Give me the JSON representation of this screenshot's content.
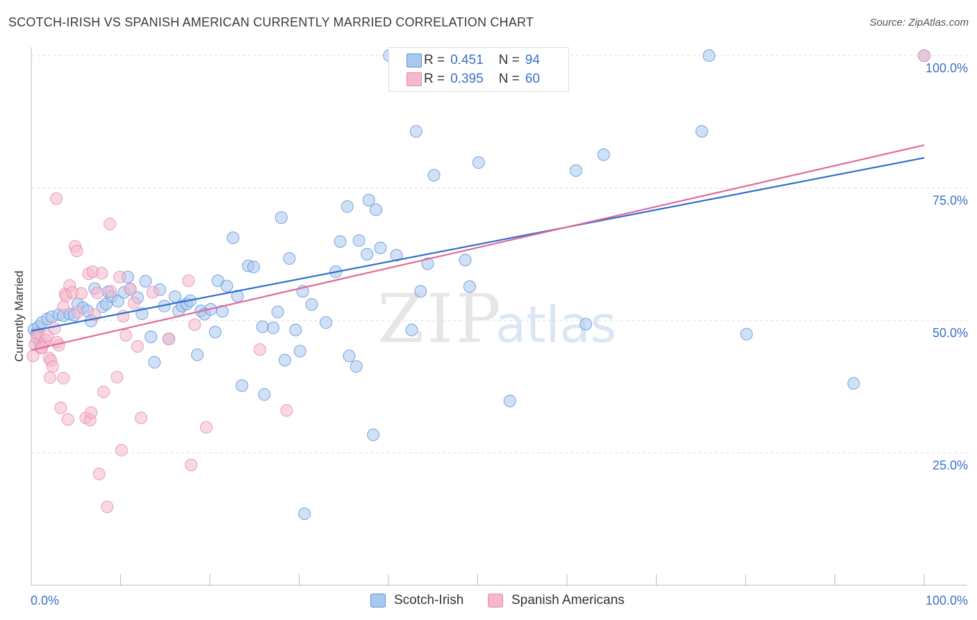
{
  "title": "SCOTCH-IRISH VS SPANISH AMERICAN CURRENTLY MARRIED CORRELATION CHART",
  "source": "Source: ZipAtlas.com",
  "watermark": {
    "zip": "ZIP",
    "atlas": "atlas"
  },
  "legend": {
    "r_label": "R =",
    "n_label": "N =",
    "series": [
      {
        "name": "Scotch-Irish",
        "r": "0.451",
        "n": "94"
      },
      {
        "name": "Spanish Americans",
        "r": "0.395",
        "n": "60"
      }
    ]
  },
  "colors": {
    "blue_fill": "#a9c8f0",
    "blue_stroke": "#5b8fd6",
    "blue_line": "#2f6fcc",
    "pink_fill": "#f6b8cc",
    "pink_stroke": "#e58aa8",
    "pink_line": "#e06b96",
    "axis_label": "#3a70c8",
    "grid": "#dcdcdc"
  },
  "chart_data": {
    "type": "scatter",
    "ylabel": "Currently Married",
    "xlim": [
      0,
      100
    ],
    "ylim": [
      0,
      100
    ],
    "x_tick_labels": [
      "0.0%",
      "100.0%"
    ],
    "y_tick_values": [
      25,
      50,
      75,
      100
    ],
    "y_tick_labels": [
      "25.0%",
      "50.0%",
      "75.0%",
      "100.0%"
    ],
    "grid": true,
    "legend_position": "top-center",
    "series": [
      {
        "name": "Scotch-Irish",
        "color": "#a9c8f0",
        "trend": {
          "x": [
            0,
            100
          ],
          "y": [
            48.0,
            80.7
          ]
        },
        "points": [
          [
            40.1,
            100
          ],
          [
            48.8,
            100
          ],
          [
            75.9,
            100
          ],
          [
            100,
            100
          ],
          [
            0.3,
            48.3
          ],
          [
            0.6,
            47.5
          ],
          [
            0.8,
            48.8
          ],
          [
            1.2,
            49.6
          ],
          [
            1.8,
            50.3
          ],
          [
            2.3,
            50.7
          ],
          [
            3.1,
            51.1
          ],
          [
            3.6,
            50.9
          ],
          [
            4.3,
            51.2
          ],
          [
            4.8,
            51.0
          ],
          [
            5.2,
            53.1
          ],
          [
            5.8,
            52.4
          ],
          [
            6.3,
            51.8
          ],
          [
            7.1,
            56.0
          ],
          [
            6.7,
            49.9
          ],
          [
            8.0,
            52.6
          ],
          [
            8.4,
            53.1
          ],
          [
            8.6,
            55.4
          ],
          [
            9.0,
            54.5
          ],
          [
            9.7,
            53.6
          ],
          [
            10.4,
            55.3
          ],
          [
            10.8,
            58.2
          ],
          [
            11.1,
            55.9
          ],
          [
            11.9,
            54.3
          ],
          [
            12.4,
            51.3
          ],
          [
            12.8,
            57.4
          ],
          [
            13.4,
            46.9
          ],
          [
            13.8,
            42.1
          ],
          [
            14.4,
            55.8
          ],
          [
            14.9,
            52.7
          ],
          [
            15.4,
            46.5
          ],
          [
            16.1,
            54.5
          ],
          [
            16.5,
            51.8
          ],
          [
            16.9,
            52.7
          ],
          [
            17.4,
            53.1
          ],
          [
            17.8,
            53.7
          ],
          [
            18.6,
            43.5
          ],
          [
            19.0,
            51.8
          ],
          [
            19.4,
            51.2
          ],
          [
            20.1,
            52.1
          ],
          [
            20.6,
            47.8
          ],
          [
            20.9,
            57.5
          ],
          [
            21.4,
            51.7
          ],
          [
            21.9,
            56.5
          ],
          [
            22.6,
            65.6
          ],
          [
            23.1,
            54.6
          ],
          [
            23.6,
            37.7
          ],
          [
            24.3,
            60.3
          ],
          [
            24.9,
            60.1
          ],
          [
            25.9,
            48.8
          ],
          [
            26.1,
            36.0
          ],
          [
            27.1,
            48.6
          ],
          [
            27.6,
            51.6
          ],
          [
            28.0,
            69.4
          ],
          [
            28.4,
            42.5
          ],
          [
            28.9,
            61.7
          ],
          [
            29.6,
            48.2
          ],
          [
            30.1,
            44.2
          ],
          [
            30.4,
            55.5
          ],
          [
            31.4,
            53.0
          ],
          [
            30.6,
            13.5
          ],
          [
            34.1,
            59.2
          ],
          [
            34.6,
            64.9
          ],
          [
            35.4,
            71.5
          ],
          [
            35.6,
            43.3
          ],
          [
            36.4,
            41.3
          ],
          [
            36.7,
            65.1
          ],
          [
            37.6,
            62.5
          ],
          [
            37.8,
            72.7
          ],
          [
            38.6,
            70.9
          ],
          [
            39.1,
            63.7
          ],
          [
            38.3,
            28.4
          ],
          [
            40.9,
            62.3
          ],
          [
            42.6,
            48.2
          ],
          [
            43.1,
            85.7
          ],
          [
            43.6,
            55.5
          ],
          [
            44.4,
            60.7
          ],
          [
            45.1,
            77.4
          ],
          [
            48.6,
            61.4
          ],
          [
            49.1,
            56.4
          ],
          [
            50.1,
            79.8
          ],
          [
            62.1,
            49.3
          ],
          [
            53.6,
            34.8
          ],
          [
            61.0,
            78.3
          ],
          [
            64.1,
            81.3
          ],
          [
            75.1,
            85.7
          ],
          [
            80.1,
            47.4
          ],
          [
            92.1,
            38.1
          ],
          [
            33.0,
            49.6
          ],
          [
            0.9,
            45.7
          ]
        ]
      },
      {
        "name": "Spanish Americans",
        "color": "#f6b8cc",
        "trend": {
          "x": [
            0,
            100
          ],
          "y": [
            44.4,
            83.1
          ]
        },
        "points": [
          [
            100,
            100
          ],
          [
            0.2,
            43.3
          ],
          [
            0.4,
            45.5
          ],
          [
            0.6,
            46.8
          ],
          [
            0.9,
            47.4
          ],
          [
            1.1,
            44.8
          ],
          [
            1.4,
            45.6
          ],
          [
            1.6,
            46.3
          ],
          [
            1.8,
            47.1
          ],
          [
            2.0,
            42.9
          ],
          [
            2.2,
            42.4
          ],
          [
            2.4,
            41.3
          ],
          [
            2.1,
            39.2
          ],
          [
            2.6,
            48.5
          ],
          [
            2.9,
            45.9
          ],
          [
            3.1,
            45.3
          ],
          [
            3.3,
            33.5
          ],
          [
            2.8,
            73.0
          ],
          [
            3.6,
            39.1
          ],
          [
            3.8,
            55.0
          ],
          [
            3.9,
            54.6
          ],
          [
            4.3,
            56.6
          ],
          [
            4.1,
            31.3
          ],
          [
            3.6,
            52.6
          ],
          [
            4.6,
            55.3
          ],
          [
            4.9,
            64.0
          ],
          [
            5.1,
            63.1
          ],
          [
            5.2,
            51.6
          ],
          [
            5.6,
            55.1
          ],
          [
            6.1,
            31.6
          ],
          [
            6.4,
            58.8
          ],
          [
            6.6,
            31.2
          ],
          [
            6.7,
            32.6
          ],
          [
            6.9,
            59.2
          ],
          [
            7.4,
            55.2
          ],
          [
            7.6,
            21.0
          ],
          [
            7.9,
            58.9
          ],
          [
            7.1,
            51.1
          ],
          [
            8.1,
            36.5
          ],
          [
            8.5,
            14.8
          ],
          [
            8.8,
            68.2
          ],
          [
            8.9,
            55.5
          ],
          [
            9.6,
            39.3
          ],
          [
            9.9,
            58.2
          ],
          [
            10.1,
            25.5
          ],
          [
            10.3,
            50.8
          ],
          [
            10.6,
            47.2
          ],
          [
            11.1,
            55.9
          ],
          [
            11.5,
            53.3
          ],
          [
            11.9,
            45.1
          ],
          [
            12.3,
            31.6
          ],
          [
            13.6,
            55.3
          ],
          [
            15.4,
            46.5
          ],
          [
            17.6,
            57.5
          ],
          [
            17.9,
            22.7
          ],
          [
            18.3,
            49.2
          ],
          [
            19.6,
            29.8
          ],
          [
            25.6,
            44.5
          ],
          [
            28.6,
            33.0
          ],
          [
            1.2,
            44.9
          ]
        ]
      }
    ]
  }
}
